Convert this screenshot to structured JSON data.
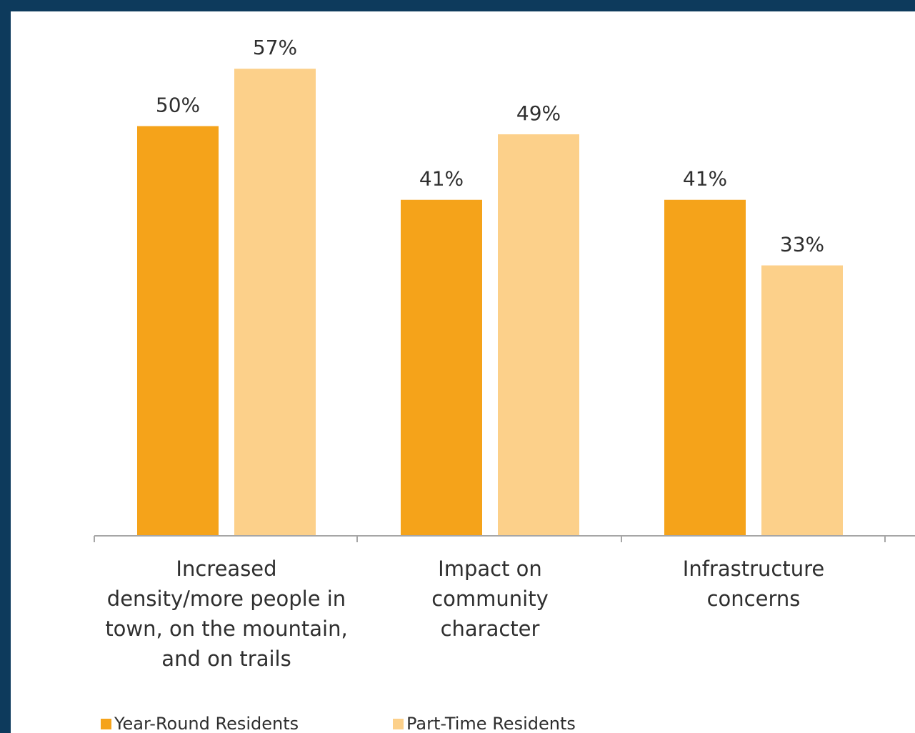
{
  "chart_data": {
    "type": "bar",
    "title": "",
    "xlabel": "",
    "ylabel": "",
    "ylim": [
      0,
      60
    ],
    "grid": false,
    "legend_position": "bottom-left",
    "categories": [
      [
        "Increased",
        "density/more people in",
        "town, on the mountain,",
        "and on trails"
      ],
      [
        "Impact on",
        "community",
        "character"
      ],
      [
        "Infrastructure",
        "concerns"
      ]
    ],
    "series": [
      {
        "name": "Year-Round Residents",
        "color": "#f5a31a",
        "values": [
          50,
          41,
          41
        ],
        "labels": [
          "50%",
          "41%",
          "41%"
        ]
      },
      {
        "name": "Part-Time Residents",
        "color": "#fcd08a",
        "values": [
          57,
          49,
          33
        ],
        "labels": [
          "57%",
          "49%",
          "33%"
        ]
      }
    ],
    "axis_color": "#a6a6a6"
  }
}
